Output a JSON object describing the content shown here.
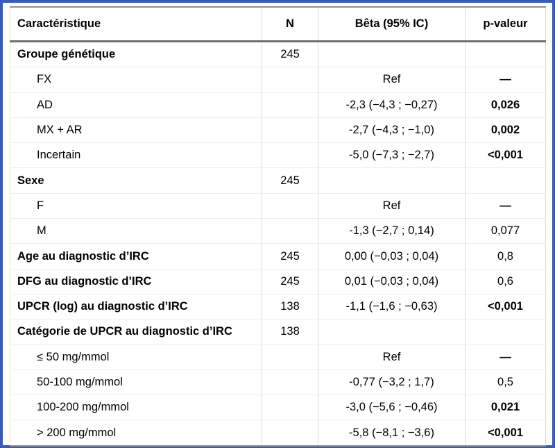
{
  "frame": {
    "border_color": "#3a5ab4"
  },
  "table": {
    "columns": [
      {
        "label": "Caractéristique"
      },
      {
        "label": "N"
      },
      {
        "label": "Bêta (95% IC)"
      },
      {
        "label": "p-valeur"
      }
    ],
    "rows": [
      {
        "label": "Groupe génétique",
        "n": "245",
        "beta": "",
        "p": "",
        "group": true,
        "indent": false,
        "p_bold": false
      },
      {
        "label": "FX",
        "n": "",
        "beta": "Ref",
        "p": "—",
        "group": false,
        "indent": true,
        "p_bold": true
      },
      {
        "label": "AD",
        "n": "",
        "beta": "-2,3 (−4,3 ; −0,27)",
        "p": "0,026",
        "group": false,
        "indent": true,
        "p_bold": true
      },
      {
        "label": "MX + AR",
        "n": "",
        "beta": "-2,7 (−4,3 ; −1,0)",
        "p": "0,002",
        "group": false,
        "indent": true,
        "p_bold": true
      },
      {
        "label": "Incertain",
        "n": "",
        "beta": "-5,0 (−7,3 ; −2,7)",
        "p": "<0,001",
        "group": false,
        "indent": true,
        "p_bold": true
      },
      {
        "label": "Sexe",
        "n": "245",
        "beta": "",
        "p": "",
        "group": true,
        "indent": false,
        "p_bold": false
      },
      {
        "label": "F",
        "n": "",
        "beta": "Ref",
        "p": "—",
        "group": false,
        "indent": true,
        "p_bold": true
      },
      {
        "label": "M",
        "n": "",
        "beta": "-1,3 (−2,7 ; 0,14)",
        "p": "0,077",
        "group": false,
        "indent": true,
        "p_bold": false
      },
      {
        "label": "Age au diagnostic d’IRC",
        "n": "245",
        "beta": "0,00 (−0,03 ; 0,04)",
        "p": "0,8",
        "group": true,
        "indent": false,
        "p_bold": false
      },
      {
        "label": "DFG au diagnostic d’IRC",
        "n": "245",
        "beta": "0,01 (−0,03 ; 0,04)",
        "p": "0,6",
        "group": true,
        "indent": false,
        "p_bold": false
      },
      {
        "label": "UPCR (log) au diagnostic d’IRC",
        "n": "138",
        "beta": "-1,1 (−1,6 ; −0,63)",
        "p": "<0,001",
        "group": true,
        "indent": false,
        "p_bold": true
      },
      {
        "label": "Catégorie de UPCR au diagnostic d’IRC",
        "n": "138",
        "beta": "",
        "p": "",
        "group": true,
        "indent": false,
        "p_bold": false
      },
      {
        "label": "≤ 50 mg/mmol",
        "n": "",
        "beta": "Ref",
        "p": "—",
        "group": false,
        "indent": true,
        "p_bold": true
      },
      {
        "label": "50-100 mg/mmol",
        "n": "",
        "beta": "-0,77 (−3,2 ; 1,7)",
        "p": "0,5",
        "group": false,
        "indent": true,
        "p_bold": false
      },
      {
        "label": "100-200 mg/mmol",
        "n": "",
        "beta": "-3,0 (−5,6 ; −0,46)",
        "p": "0,021",
        "group": false,
        "indent": true,
        "p_bold": true
      },
      {
        "label": "> 200 mg/mmol",
        "n": "",
        "beta": "-5,8 (−8,1 ; −3,6)",
        "p": "<0,001",
        "group": false,
        "indent": true,
        "p_bold": true
      }
    ]
  }
}
